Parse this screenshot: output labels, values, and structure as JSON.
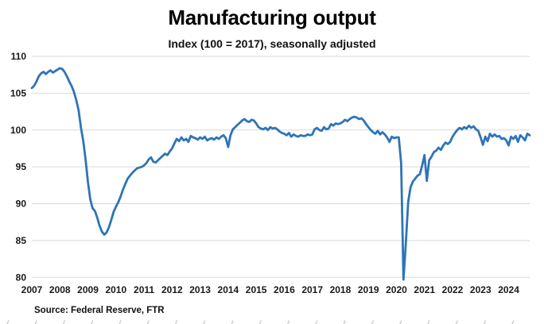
{
  "header": {
    "title": "Manufacturing output",
    "subtitle": "Index (100 = 2017), seasonally adjusted"
  },
  "footer": {
    "source": "Source: Federal Reserve, FTR"
  },
  "chart_data": {
    "type": "line",
    "title": "Manufacturing output",
    "subtitle": "Index (100 = 2017), seasonally adjusted",
    "frequency": "monthly",
    "x_start": "2007-01",
    "x_end": "2024-10",
    "x_tick_labels": [
      "2007",
      "2008",
      "2009",
      "2010",
      "2011",
      "2012",
      "2013",
      "2014",
      "2015",
      "2016",
      "2017",
      "2018",
      "2019",
      "2020",
      "2021",
      "2022",
      "2023",
      "2024"
    ],
    "y_ticks": [
      110,
      105,
      100,
      95,
      90,
      85,
      80
    ],
    "ylim": [
      80,
      110
    ],
    "grid": "horizontal-only",
    "legend": "none",
    "line_color": "#2E74B8",
    "grid_color": "#d9d9d9",
    "tick_label_color": "#1a1a1a",
    "series": [
      {
        "name": "Manufacturing output index (100 = 2017), seasonally adjusted",
        "values": [
          105.7,
          106.0,
          106.6,
          107.3,
          107.7,
          107.9,
          107.6,
          107.9,
          108.1,
          107.8,
          108.0,
          108.2,
          108.4,
          108.3,
          107.9,
          107.3,
          106.6,
          106.0,
          105.2,
          104.1,
          102.7,
          100.4,
          98.5,
          96.0,
          93.0,
          90.6,
          89.4,
          89.0,
          88.1,
          87.0,
          86.2,
          85.8,
          86.1,
          86.8,
          87.8,
          88.9,
          89.6,
          90.2,
          91.0,
          91.9,
          92.7,
          93.4,
          93.8,
          94.2,
          94.5,
          94.8,
          94.9,
          95.0,
          95.2,
          95.5,
          96.0,
          96.3,
          95.7,
          95.6,
          95.9,
          96.2,
          96.5,
          96.8,
          96.6,
          97.1,
          97.5,
          98.2,
          98.8,
          98.5,
          99.0,
          98.6,
          98.8,
          98.4,
          99.2,
          99.0,
          98.9,
          98.7,
          99.0,
          98.8,
          99.1,
          98.6,
          98.8,
          98.9,
          98.7,
          99.0,
          98.8,
          99.1,
          99.3,
          98.9,
          97.7,
          99.3,
          100.1,
          100.4,
          100.7,
          101.0,
          101.3,
          101.5,
          101.2,
          101.1,
          101.4,
          101.3,
          100.9,
          100.4,
          100.2,
          100.1,
          100.3,
          100.0,
          100.4,
          100.2,
          100.3,
          100.1,
          99.8,
          99.6,
          99.5,
          99.3,
          99.6,
          99.1,
          99.4,
          99.2,
          99.1,
          99.3,
          99.2,
          99.2,
          99.4,
          99.3,
          99.4,
          100.1,
          100.3,
          100.0,
          99.9,
          100.4,
          100.1,
          100.2,
          100.8,
          100.6,
          100.9,
          100.8,
          100.9,
          101.1,
          101.4,
          101.2,
          101.5,
          101.7,
          101.8,
          101.7,
          101.5,
          101.6,
          101.3,
          100.8,
          100.4,
          100.0,
          99.7,
          99.5,
          99.9,
          99.4,
          99.7,
          99.4,
          99.0,
          98.4,
          99.1,
          98.9,
          99.0,
          99.0,
          95.5,
          79.7,
          84.5,
          90.2,
          92.2,
          93.0,
          93.4,
          93.8,
          94.0,
          95.2,
          96.6,
          93.1,
          95.9,
          96.4,
          97.0,
          97.2,
          97.6,
          97.3,
          97.9,
          98.3,
          98.1,
          98.4,
          99.1,
          99.6,
          100.0,
          100.3,
          100.1,
          100.4,
          100.2,
          100.6,
          100.3,
          100.5,
          100.1,
          99.9,
          99.0,
          98.0,
          99.1,
          98.5,
          99.5,
          99.1,
          99.4,
          99.1,
          99.2,
          98.8,
          98.9,
          98.6,
          97.9,
          99.1,
          98.8,
          99.2,
          98.4,
          99.3,
          99.0,
          98.6,
          99.5,
          99.3
        ]
      }
    ]
  }
}
